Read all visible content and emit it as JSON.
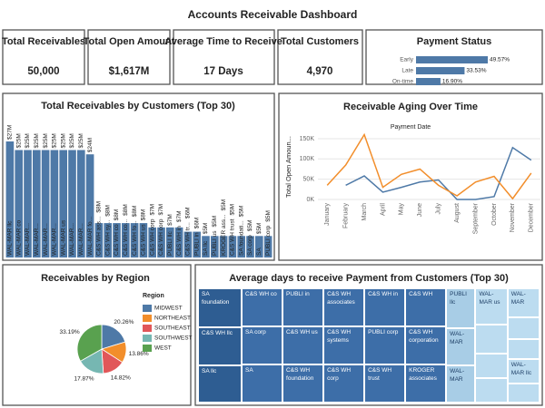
{
  "title": "Accounts Receivable Dashboard",
  "kpis": [
    {
      "label": "Total Receivables",
      "value": "50,000"
    },
    {
      "label": "Total Open Amount",
      "value": "$1,617M"
    },
    {
      "label": "Average Time to Receive",
      "value": "17 Days"
    },
    {
      "label": "Total Customers",
      "value": "4,970"
    }
  ],
  "chart_data": [
    {
      "type": "hbar",
      "title": "Payment Status",
      "categories": [
        "Early",
        "Late",
        "On-time"
      ],
      "values": [
        49.57,
        33.53,
        16.9
      ],
      "value_labels": [
        "49.57%",
        "33.53%",
        "16.90%"
      ],
      "color": "#4e79a7"
    },
    {
      "type": "bar",
      "title": "Total Receivables by Customers (Top 30)",
      "categories": [
        "WAL-MAR llc",
        "WAL-MAR co",
        "WAL-MAR...",
        "WAL-MAR...",
        "WAL-MAR...",
        "WAL-MAR...",
        "WAL-MAR us",
        "WAL-MAR...",
        "WAL-MAR...",
        "WAL-MAR fo...",
        "C&S WH ass...",
        "C&S WH sy...",
        "C&S WH co",
        "C&S WH co...",
        "C&S WH fo...",
        "C&S WH us",
        "C&S WH corp",
        "C&S WH corp",
        "PUBLI llc",
        "C&S WH in",
        "C&S WH tr...",
        "PUBLI in",
        "SA llc",
        "PUBLI us",
        "KROGER ass...",
        "C&S WH trust",
        "SA foundati...",
        "SA corp",
        "SA",
        "PUBLI corp"
      ],
      "values": [
        27,
        25,
        25,
        25,
        25,
        25,
        25,
        25,
        25,
        24,
        8,
        8,
        8,
        8,
        8,
        8,
        7,
        7,
        7,
        7,
        6,
        6,
        5,
        5,
        5,
        5,
        5,
        5,
        5,
        5
      ],
      "value_labels": [
        "$27M",
        "$25M",
        "$25M",
        "$25M",
        "$25M",
        "$25M",
        "$25M",
        "$25M",
        "$25M",
        "$24M",
        "$8M",
        "$8M",
        "$8M",
        "$8M",
        "$8M",
        "$8M",
        "$7M",
        "$7M",
        "$7M",
        "$7M",
        "$6M",
        "$6M",
        "$5M",
        "$5M",
        "$5M",
        "$5M",
        "$5M",
        "$5M",
        "$5M",
        "$5M"
      ],
      "color": "#4e79a7"
    },
    {
      "type": "line",
      "title": "Receivable Aging Over Time",
      "subtitle": "Payment Date",
      "ylabel": "Total Open Amoun...",
      "categories": [
        "January",
        "February",
        "March",
        "April",
        "May",
        "June",
        "July",
        "August",
        "September",
        "October",
        "November",
        "December"
      ],
      "series": [
        {
          "color": "#4e79a7",
          "values": [
            null,
            35,
            58,
            18,
            30,
            43,
            48,
            0,
            0,
            7,
            128,
            97
          ]
        },
        {
          "color": "#f28e2b",
          "values": [
            35,
            85,
            160,
            30,
            62,
            75,
            35,
            9,
            43,
            57,
            2,
            65
          ]
        }
      ],
      "ylim": [
        0,
        170
      ],
      "yticks": [
        {
          "value": 0,
          "label": "0K"
        },
        {
          "value": 50,
          "label": "50K"
        },
        {
          "value": 100,
          "label": "100K"
        },
        {
          "value": 150,
          "label": "150K"
        }
      ],
      "grid": true
    },
    {
      "type": "pie",
      "title": "Receivables by Region",
      "legend_title": "Region",
      "categories": [
        "MIDWEST",
        "NORTHEAST",
        "SOUTHEAST",
        "SOUTHWEST",
        "WEST"
      ],
      "values": [
        20.26,
        13.86,
        14.82,
        17.87,
        33.19
      ],
      "value_labels": [
        "20.26%",
        "13.86%",
        "14.82%",
        "17.87%",
        "33.19%"
      ],
      "colors": [
        "#4e79a7",
        "#f28e2b",
        "#e15759",
        "#76b7b2",
        "#59a14f"
      ]
    },
    {
      "type": "treemap",
      "title": "Average days to receive Payment from Customers (Top 30)",
      "categories": [
        "SA foundation",
        "C&S WH llc",
        "SA llc",
        "C&S WH co",
        "SA corp",
        "SA",
        "PUBLI in",
        "C&S WH us",
        "C&S WH foundation",
        "C&S WH associates",
        "C&S WH systems",
        "C&S WH corp",
        "C&S WH in",
        "PUBLI corp",
        "C&S WH trust",
        "C&S WH",
        "C&S WH corporation",
        "KROGER associates",
        "PUBLI llc",
        "WAL-MAR",
        "WAL-MAR",
        "WAL-MAR us",
        null,
        null,
        null,
        "WAL-MAR",
        null,
        null,
        "WAL-MAR llc",
        null
      ],
      "values": [
        22,
        21,
        21,
        20,
        20,
        20,
        20,
        20,
        20,
        20,
        20,
        20,
        20,
        20,
        20,
        20,
        20,
        20,
        15,
        14,
        14,
        15,
        12,
        10,
        10,
        12,
        9,
        8,
        10,
        8
      ],
      "colors": [
        "#2e5d92",
        "#2e5d92",
        "#2e5d92",
        "#3d6ea8",
        "#3d6ea8",
        "#3d6ea8",
        "#3d6ea8",
        "#3d6ea8",
        "#3d6ea8",
        "#3d6ea8",
        "#3d6ea8",
        "#3d6ea8",
        "#3d6ea8",
        "#3d6ea8",
        "#3d6ea8",
        "#3d6ea8",
        "#3d6ea8",
        "#3d6ea8",
        "#a8cde6",
        "#a8cde6",
        "#a8cde6",
        "#bcdcf0",
        "#bcdcf0",
        "#bcdcf0",
        "#bcdcf0",
        "#bcdcf0",
        "#bcdcf0",
        "#bcdcf0",
        "#bcdcf0",
        "#bcdcf0"
      ]
    }
  ]
}
